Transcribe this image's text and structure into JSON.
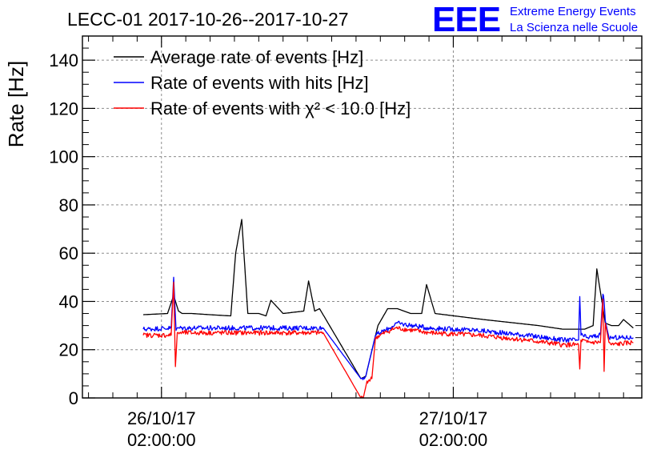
{
  "header": {
    "title": "LECC-01 2017-10-26--2017-10-27",
    "logo_text": "EEE",
    "logo_line1": "Extreme Energy Events",
    "logo_line2": "La Scienza nelle Scuole"
  },
  "colors": {
    "black": "#000000",
    "blue": "#0000ff",
    "red": "#ff0000",
    "grid": "#8c8c8c",
    "logo": "#0000ff"
  },
  "chart_data": {
    "type": "line",
    "title": "LECC-01 2017-10-26--2017-10-27",
    "ylabel": "Rate [Hz]",
    "xlabel": "",
    "ylim": [
      0,
      150
    ],
    "yticks": [
      "0",
      "20",
      "40",
      "60",
      "80",
      "100",
      "120",
      "140"
    ],
    "xticks": [
      {
        "t": 2,
        "line1": "26/10/17",
        "line2": "02:00:00"
      },
      {
        "t": 26,
        "line1": "27/10/17",
        "line2": "02:00:00"
      }
    ],
    "x_unit": "hours since 26/10/17 00:00",
    "xlim": [
      -4.5,
      41.5
    ],
    "grid": true,
    "legend_position": "top-left",
    "series": [
      {
        "name": "Average rate of events [Hz]",
        "color": "#000000",
        "x": [
          0.5,
          2.5,
          3.0,
          3.4,
          3.7,
          4.5,
          6.0,
          7.7,
          8.1,
          8.6,
          9.1,
          10.0,
          10.6,
          11.0,
          12.0,
          13.7,
          14.1,
          14.6,
          15.0,
          18.4,
          18.8,
          19.8,
          20.6,
          21.4,
          22.5,
          23.4,
          23.8,
          24.5,
          28.5,
          33.0,
          35.0,
          36.8,
          37.5,
          37.8,
          38.5,
          39.0,
          39.6,
          40.0,
          40.8
        ],
        "y": [
          34.5,
          35,
          42.5,
          36,
          35,
          35,
          34.5,
          34,
          60,
          74,
          35,
          35,
          34,
          40.5,
          35,
          36,
          48.5,
          36,
          37,
          8,
          9,
          30,
          37,
          37,
          35,
          35,
          47,
          35,
          32.5,
          30,
          28.5,
          28.5,
          30,
          53.5,
          31,
          30,
          30,
          32.5,
          29
        ]
      },
      {
        "name": "Rate of events with hits [Hz]",
        "color": "#0000ff",
        "x": [
          0.5,
          2.8,
          3.0,
          3.2,
          3.3,
          3.5,
          5.0,
          10.0,
          15.0,
          15.3,
          18.4,
          18.8,
          19.6,
          20.0,
          20.8,
          21.3,
          24.0,
          28.0,
          32.0,
          35.0,
          36.3,
          36.4,
          36.5,
          37.0,
          38.1,
          38.3,
          38.4,
          38.5,
          38.8,
          39.0,
          40.8
        ],
        "y": [
          28.5,
          29,
          50,
          28,
          29,
          29,
          29,
          29,
          29,
          29,
          8,
          9,
          26,
          27,
          29,
          31,
          29,
          28,
          26,
          24,
          24,
          42,
          26,
          25,
          26,
          43,
          40,
          32,
          25,
          25,
          25
        ],
        "noise": 1
      },
      {
        "name": "Rate of events with χ² < 10.0 [Hz]",
        "color": "#ff0000",
        "x": [
          0.5,
          2.8,
          3.0,
          3.15,
          3.3,
          3.5,
          5.0,
          10.0,
          15.0,
          15.3,
          18.4,
          18.6,
          18.9,
          19.3,
          19.6,
          20.0,
          20.8,
          21.3,
          24.0,
          28.0,
          32.0,
          35.0,
          36.3,
          36.4,
          36.5,
          37.0,
          38.1,
          38.3,
          38.4,
          38.5,
          38.8,
          39.0,
          40.8
        ],
        "y": [
          26,
          26,
          48,
          13,
          27,
          27,
          27,
          27,
          27,
          27,
          0,
          0,
          7,
          8,
          25,
          26,
          28,
          29,
          27,
          26,
          24,
          22,
          22,
          12,
          24,
          23,
          23,
          41,
          11,
          31,
          23,
          22,
          23
        ],
        "noise": 1
      }
    ]
  }
}
